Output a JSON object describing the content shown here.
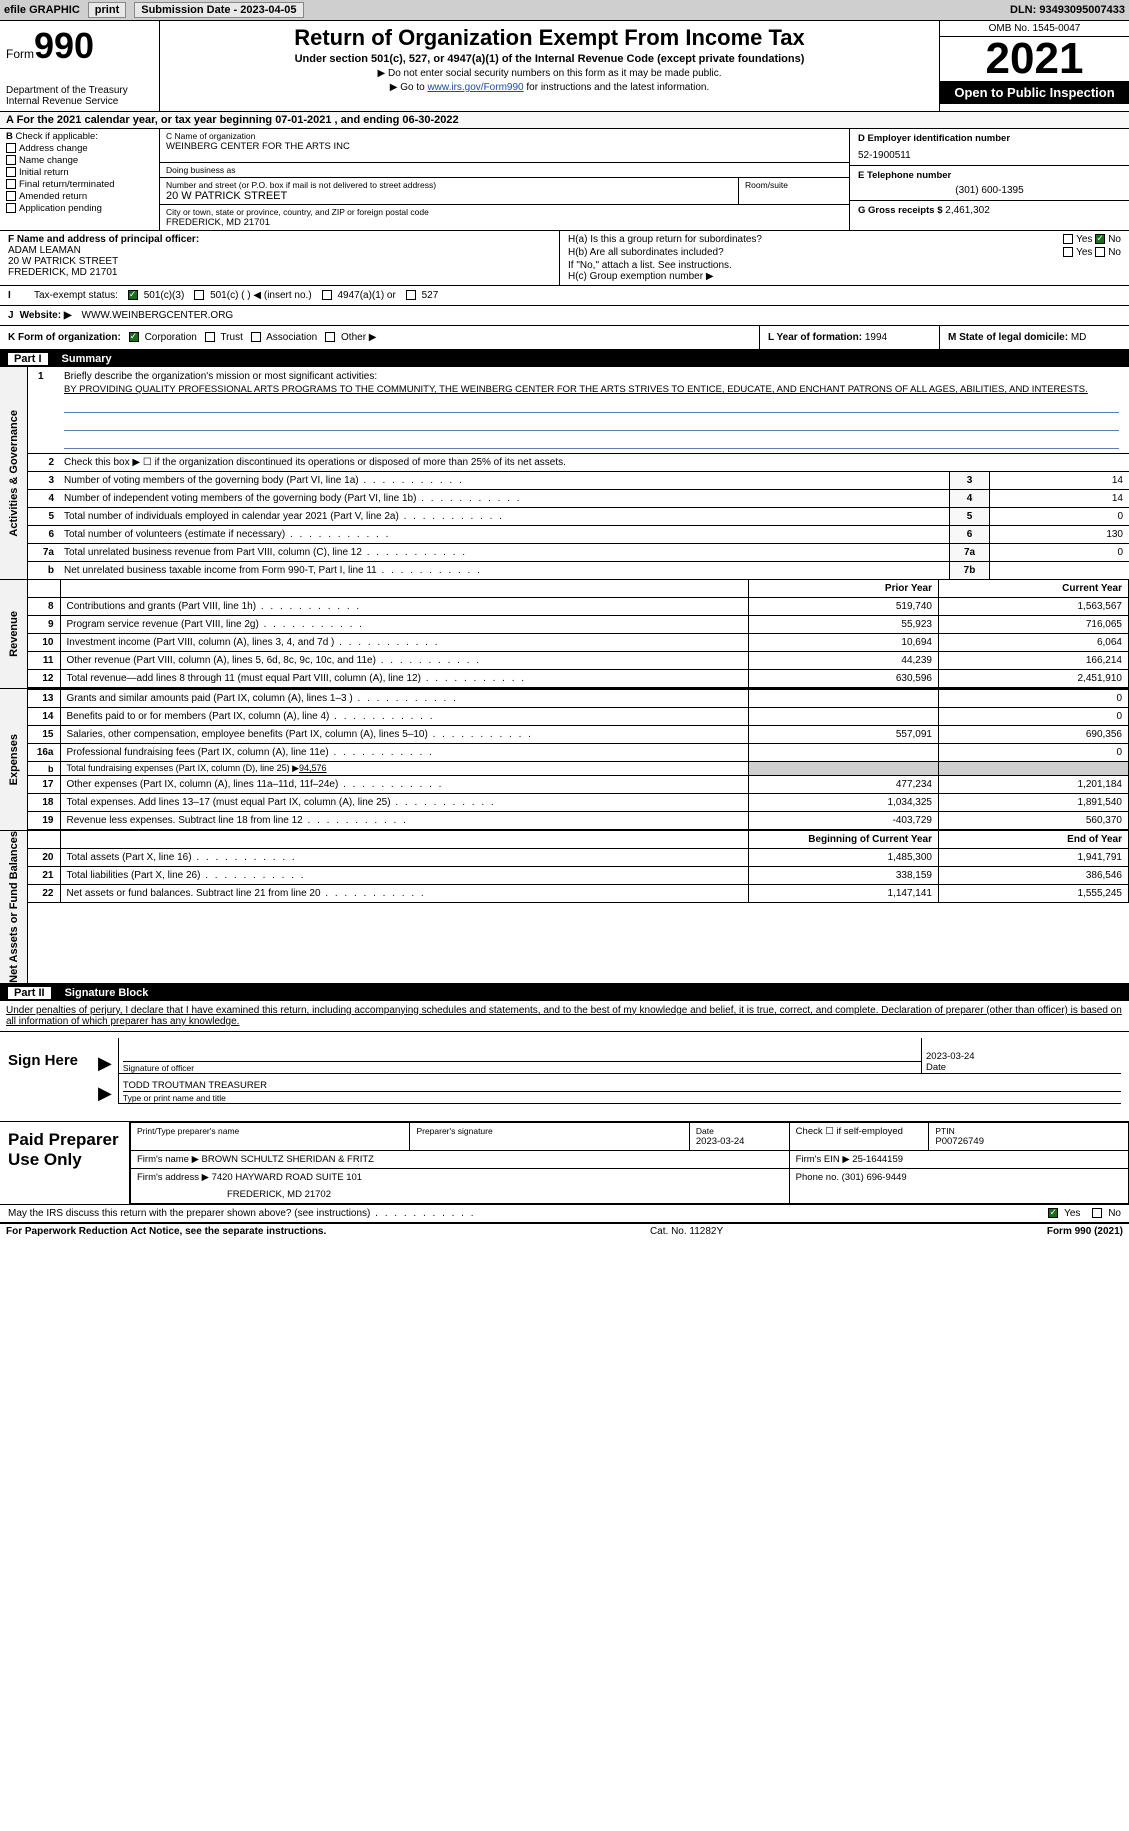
{
  "topbar": {
    "efile": "efile GRAPHIC",
    "print": "print",
    "sub_label": "Submission Date - 2023-04-05",
    "dln": "DLN: 93493095007433"
  },
  "header": {
    "form_word": "Form",
    "form_num": "990",
    "title": "Return of Organization Exempt From Income Tax",
    "subtitle": "Under section 501(c), 527, or 4947(a)(1) of the Internal Revenue Code (except private foundations)",
    "note": "▶ Do not enter social security numbers on this form as it may be made public.",
    "link_prefix": "▶ Go to ",
    "link": "www.irs.gov/Form990",
    "link_suffix": " for instructions and the latest information.",
    "omb": "OMB No. 1545-0047",
    "year": "2021",
    "open": "Open to Public Inspection",
    "dept": "Department of the Treasury",
    "irs": "Internal Revenue Service"
  },
  "period": {
    "text": "A For the 2021 calendar year, or tax year beginning 07-01-2021   , and ending 06-30-2022"
  },
  "boxB": {
    "header": "B",
    "label": "Check if applicable:",
    "opts": [
      "Address change",
      "Name change",
      "Initial return",
      "Final return/terminated",
      "Amended return",
      "Application pending"
    ]
  },
  "boxC": {
    "name_lbl": "C Name of organization",
    "name": "WEINBERG CENTER FOR THE ARTS INC",
    "dba_lbl": "Doing business as",
    "dba": "",
    "street_lbl": "Number and street (or P.O. box if mail is not delivered to street address)",
    "street": "20 W PATRICK STREET",
    "room_lbl": "Room/suite",
    "room": "",
    "city_lbl": "City or town, state or province, country, and ZIP or foreign postal code",
    "city": "FREDERICK, MD  21701"
  },
  "boxD": {
    "ein_lbl": "D Employer identification number",
    "ein": "52-1900511",
    "phone_lbl": "E Telephone number",
    "phone": "(301) 600-1395",
    "gross_lbl": "G Gross receipts $",
    "gross": "2,461,302"
  },
  "officer": {
    "lbl": "F  Name and address of principal officer:",
    "name": "ADAM LEAMAN",
    "street": "20 W PATRICK STREET",
    "city": "FREDERICK, MD  21701"
  },
  "ha": {
    "a_lbl": "H(a)  Is this a group return for subordinates?",
    "b_lbl": "H(b)  Are all subordinates included?",
    "note": "If \"No,\" attach a list. See instructions.",
    "c_lbl": "H(c)  Group exemption number ▶",
    "yes": "Yes",
    "no": "No"
  },
  "taxstatus": {
    "lbl": "I",
    "text": "Tax-exempt status:",
    "o1": "501(c)(3)",
    "o2": "501(c) (  ) ◀ (insert no.)",
    "o3": "4947(a)(1) or",
    "o4": "527"
  },
  "website": {
    "lbl": "J",
    "text": "Website: ▶",
    "val": "WWW.WEINBERGCENTER.ORG"
  },
  "orgform": {
    "k": "K Form of organization:",
    "corp": "Corporation",
    "trust": "Trust",
    "assoc": "Association",
    "other": "Other ▶",
    "l": "L Year of formation:",
    "l_val": "1994",
    "m": "M State of legal domicile:",
    "m_val": "MD"
  },
  "parts": {
    "p1": "Part I",
    "p1_title": "Summary",
    "p2": "Part II",
    "p2_title": "Signature Block"
  },
  "vtabs": {
    "gov": "Activities & Governance",
    "rev": "Revenue",
    "exp": "Expenses",
    "net": "Net Assets or Fund Balances"
  },
  "summary": {
    "l1_lbl": "Briefly describe the organization's mission or most significant activities:",
    "l1_text": "BY PROVIDING QUALITY PROFESSIONAL ARTS PROGRAMS TO THE COMMUNITY, THE WEINBERG CENTER FOR THE ARTS STRIVES TO ENTICE, EDUCATE, AND ENCHANT PATRONS OF ALL AGES, ABILITIES, AND INTERESTS.",
    "l2": "Check this box ▶ ☐ if the organization discontinued its operations or disposed of more than 25% of its net assets.",
    "l3": "Number of voting members of the governing body (Part VI, line 1a)",
    "l3v": "14",
    "l4": "Number of independent voting members of the governing body (Part VI, line 1b)",
    "l4v": "14",
    "l5": "Total number of individuals employed in calendar year 2021 (Part V, line 2a)",
    "l5v": "0",
    "l6": "Total number of volunteers (estimate if necessary)",
    "l6v": "130",
    "l7a": "Total unrelated business revenue from Part VIII, column (C), line 12",
    "l7av": "0",
    "l7b": "Net unrelated business taxable income from Form 990-T, Part I, line 11",
    "l7bv": ""
  },
  "money": {
    "col_prior": "Prior Year",
    "col_curr": "Current Year",
    "col_boy": "Beginning of Current Year",
    "col_eoy": "End of Year",
    "rows_rev": [
      {
        "n": "8",
        "d": "Contributions and grants (Part VIII, line 1h)",
        "p": "519,740",
        "c": "1,563,567"
      },
      {
        "n": "9",
        "d": "Program service revenue (Part VIII, line 2g)",
        "p": "55,923",
        "c": "716,065"
      },
      {
        "n": "10",
        "d": "Investment income (Part VIII, column (A), lines 3, 4, and 7d )",
        "p": "10,694",
        "c": "6,064"
      },
      {
        "n": "11",
        "d": "Other revenue (Part VIII, column (A), lines 5, 6d, 8c, 9c, 10c, and 11e)",
        "p": "44,239",
        "c": "166,214"
      },
      {
        "n": "12",
        "d": "Total revenue—add lines 8 through 11 (must equal Part VIII, column (A), line 12)",
        "p": "630,596",
        "c": "2,451,910"
      }
    ],
    "rows_exp": [
      {
        "n": "13",
        "d": "Grants and similar amounts paid (Part IX, column (A), lines 1–3 )",
        "p": "",
        "c": "0"
      },
      {
        "n": "14",
        "d": "Benefits paid to or for members (Part IX, column (A), line 4)",
        "p": "",
        "c": "0"
      },
      {
        "n": "15",
        "d": "Salaries, other compensation, employee benefits (Part IX, column (A), lines 5–10)",
        "p": "557,091",
        "c": "690,356"
      },
      {
        "n": "16a",
        "d": "Professional fundraising fees (Part IX, column (A), line 11e)",
        "p": "",
        "c": "0"
      }
    ],
    "row_b": {
      "n": "b",
      "d": "Total fundraising expenses (Part IX, column (D), line 25) ▶",
      "v": "94,576"
    },
    "rows_exp2": [
      {
        "n": "17",
        "d": "Other expenses (Part IX, column (A), lines 11a–11d, 11f–24e)",
        "p": "477,234",
        "c": "1,201,184"
      },
      {
        "n": "18",
        "d": "Total expenses. Add lines 13–17 (must equal Part IX, column (A), line 25)",
        "p": "1,034,325",
        "c": "1,891,540"
      },
      {
        "n": "19",
        "d": "Revenue less expenses. Subtract line 18 from line 12",
        "p": "-403,729",
        "c": "560,370"
      }
    ],
    "rows_net": [
      {
        "n": "20",
        "d": "Total assets (Part X, line 16)",
        "p": "1,485,300",
        "c": "1,941,791"
      },
      {
        "n": "21",
        "d": "Total liabilities (Part X, line 26)",
        "p": "338,159",
        "c": "386,546"
      },
      {
        "n": "22",
        "d": "Net assets or fund balances. Subtract line 21 from line 20",
        "p": "1,147,141",
        "c": "1,555,245"
      }
    ]
  },
  "sig": {
    "intro": "Under penalties of perjury, I declare that I have examined this return, including accompanying schedules and statements, and to the best of my knowledge and belief, it is true, correct, and complete. Declaration of preparer (other than officer) is based on all information of which preparer has any knowledge.",
    "sign_here": "Sign Here",
    "sig_officer": "Signature of officer",
    "date_lbl": "Date",
    "date": "2023-03-24",
    "name": "TODD TROUTMAN  TREASURER",
    "name_lbl": "Type or print name and title"
  },
  "paid": {
    "lbl": "Paid Preparer Use Only",
    "print_lbl": "Print/Type preparer's name",
    "print_val": "",
    "sig_lbl": "Preparer's signature",
    "date_lbl": "Date",
    "date": "2023-03-24",
    "check_lbl": "Check ☐ if self-employed",
    "ptin_lbl": "PTIN",
    "ptin": "P00726749",
    "firm_name_lbl": "Firm's name    ▶",
    "firm_name": "BROWN SCHULTZ SHERIDAN & FRITZ",
    "firm_ein_lbl": "Firm's EIN ▶",
    "firm_ein": "25-1644159",
    "firm_addr_lbl": "Firm's address ▶",
    "firm_addr1": "7420 HAYWARD ROAD SUITE 101",
    "firm_addr2": "FREDERICK, MD  21702",
    "phone_lbl": "Phone no.",
    "phone": "(301) 696-9449"
  },
  "discuss": {
    "text": "May the IRS discuss this return with the preparer shown above? (see instructions)",
    "yes": "Yes",
    "no": "No"
  },
  "footer": {
    "left": "For Paperwork Reduction Act Notice, see the separate instructions.",
    "mid": "Cat. No. 11282Y",
    "right": "Form 990 (2021)"
  }
}
